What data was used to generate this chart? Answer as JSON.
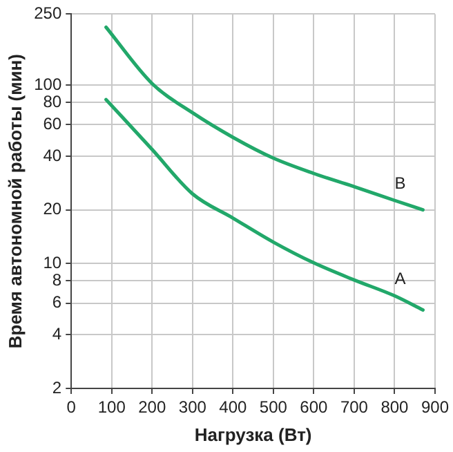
{
  "chart_data": {
    "type": "line",
    "xlabel": "Нагрузка (Вт)",
    "ylabel": "Время автономной работы (мин)",
    "series": [
      {
        "name": "B",
        "color": "#22a86a",
        "x": [
          86,
          200,
          300,
          400,
          500,
          600,
          700,
          800,
          870
        ],
        "values": [
          211,
          102,
          70,
          51,
          39,
          32,
          27,
          22.6,
          20
        ]
      },
      {
        "name": "A",
        "color": "#22a86a",
        "x": [
          86,
          200,
          300,
          400,
          500,
          600,
          700,
          800,
          870
        ],
        "values": [
          83,
          43.6,
          24.6,
          18,
          13.2,
          10.1,
          8.1,
          6.6,
          5.5
        ]
      }
    ],
    "xlim": [
      0,
      900
    ],
    "xticks": [
      0,
      100,
      200,
      300,
      400,
      500,
      600,
      700,
      800,
      900
    ],
    "ylim": [
      2,
      250
    ],
    "yticks": [
      2,
      4,
      6,
      8,
      10,
      20,
      40,
      60,
      80,
      100,
      250
    ],
    "log": "y",
    "grid": true,
    "legend": false,
    "marker": "none",
    "line_style": "solid"
  }
}
